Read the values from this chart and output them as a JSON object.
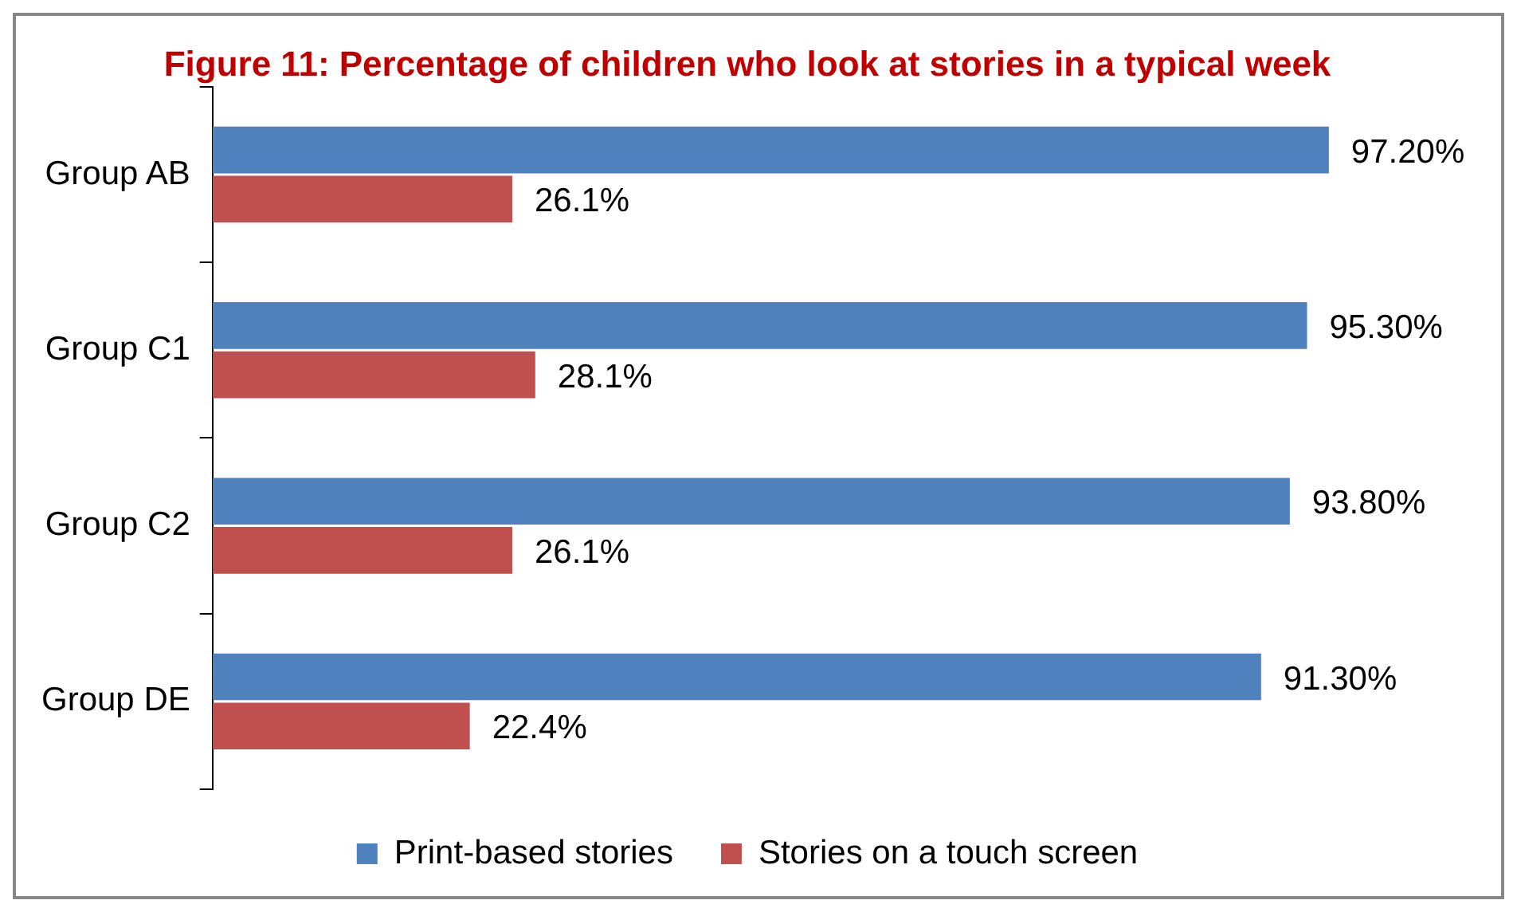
{
  "chart_data": {
    "type": "bar",
    "orientation": "horizontal",
    "title": "Figure 11: Percentage of children who look at stories in a typical week",
    "categories": [
      "Group AB",
      "Group C1",
      "Group C2",
      "Group DE"
    ],
    "series": [
      {
        "name": "Print-based stories",
        "color": "#4f81bd",
        "values": [
          97.2,
          95.3,
          93.8,
          91.3
        ],
        "value_labels": [
          "97.20%",
          "95.30%",
          "93.80%",
          "91.30%"
        ]
      },
      {
        "name": "Stories on a touch screen",
        "color": "#c0504d",
        "values": [
          26.1,
          28.1,
          26.1,
          22.4
        ],
        "value_labels": [
          "26.1%",
          "28.1%",
          "26.1%",
          "22.4%"
        ]
      }
    ],
    "legend": "bottom"
  }
}
